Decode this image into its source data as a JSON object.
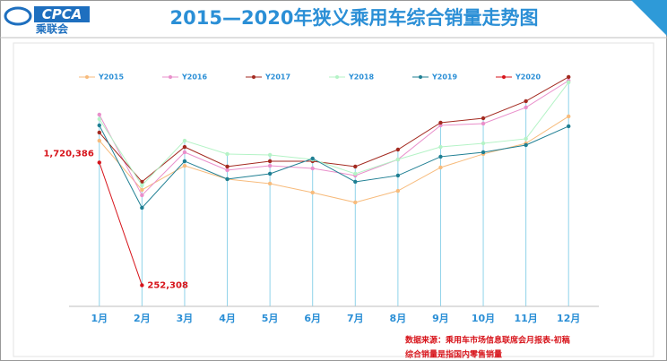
{
  "logo": {
    "mark": "CPCA",
    "name": "乘联会"
  },
  "chart_data": {
    "type": "line",
    "title": "2015—2020年狭义乘用车综合销量走势图",
    "categories": [
      "1月",
      "2月",
      "3月",
      "4月",
      "5月",
      "6月",
      "7月",
      "8月",
      "9月",
      "10月",
      "11月",
      "12月"
    ],
    "ylim": [
      0,
      3000000
    ],
    "legend": "top",
    "series": [
      {
        "name": "Y2015",
        "color": "#f7bb7c",
        "values": [
          1982000,
          1393000,
          1682000,
          1522000,
          1468000,
          1361000,
          1243000,
          1382000,
          1661000,
          1822000,
          1950000,
          2272000
        ]
      },
      {
        "name": "Y2016",
        "color": "#e98fcb",
        "values": [
          2293000,
          1329000,
          1843000,
          1629000,
          1682000,
          1650000,
          1565000,
          1757000,
          2165000,
          2186000,
          2379000,
          2700000
        ]
      },
      {
        "name": "Y2017",
        "color": "#a32a20",
        "values": [
          2079000,
          1490000,
          1907000,
          1672000,
          1736000,
          1736000,
          1672000,
          1875000,
          2197000,
          2250000,
          2454000,
          2743000
        ]
      },
      {
        "name": "Y2018",
        "color": "#b4f3c6",
        "values": [
          2240000,
          1447000,
          1982000,
          1822000,
          1811000,
          1757000,
          1586000,
          1757000,
          1907000,
          1950000,
          2004000,
          2679000
        ]
      },
      {
        "name": "Y2019",
        "color": "#1f7f93",
        "values": [
          2165000,
          1179000,
          1736000,
          1522000,
          1586000,
          1768000,
          1490000,
          1565000,
          1790000,
          1843000,
          1929000,
          2154000
        ]
      },
      {
        "name": "Y2020",
        "color": "#d7141b",
        "values": [
          1720386,
          252308,
          null,
          null,
          null,
          null,
          null,
          null,
          null,
          null,
          null,
          null
        ],
        "value_labels": [
          "1,720,386",
          "252,308",
          null,
          null,
          null,
          null,
          null,
          null,
          null,
          null,
          null,
          null
        ]
      }
    ],
    "notes": [
      "数据来源：乘用车市场信息联席会月报表-初稿",
      "综合销量是指国内零售销量"
    ]
  }
}
